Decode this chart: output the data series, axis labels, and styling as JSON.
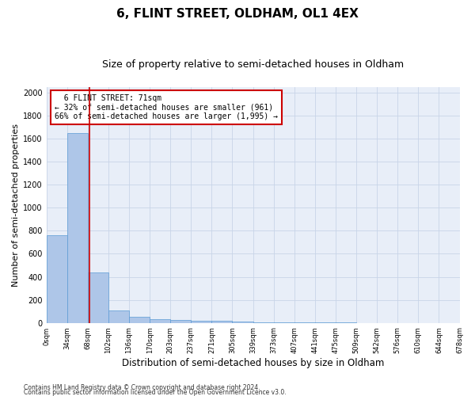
{
  "title1": "6, FLINT STREET, OLDHAM, OL1 4EX",
  "title2": "Size of property relative to semi-detached houses in Oldham",
  "xlabel": "Distribution of semi-detached houses by size in Oldham",
  "ylabel": "Number of semi-detached properties",
  "footnote1": "Contains HM Land Registry data © Crown copyright and database right 2024.",
  "footnote2": "Contains public sector information licensed under the Open Government Licence v3.0.",
  "bar_values": [
    760,
    1650,
    440,
    110,
    50,
    35,
    25,
    20,
    15,
    8,
    5,
    3,
    2,
    1,
    1,
    0,
    0,
    0,
    0
  ],
  "categories": [
    "0sqm",
    "34sqm",
    "68sqm",
    "102sqm",
    "136sqm",
    "170sqm",
    "203sqm",
    "237sqm",
    "271sqm",
    "305sqm",
    "339sqm",
    "373sqm",
    "407sqm",
    "441sqm",
    "475sqm",
    "509sqm",
    "542sqm",
    "576sqm",
    "610sqm",
    "644sqm",
    "678sqm"
  ],
  "bar_color": "#aec6e8",
  "bar_edge_color": "#5b9bd5",
  "property_size": 71,
  "property_line_label": "6 FLINT STREET: 71sqm",
  "pct_smaller": 32,
  "count_smaller": 961,
  "pct_larger": 66,
  "count_larger": 1995,
  "annotation_box_color": "#cc0000",
  "ylim": [
    0,
    2050
  ],
  "yticks": [
    0,
    200,
    400,
    600,
    800,
    1000,
    1200,
    1400,
    1600,
    1800,
    2000
  ],
  "grid_color": "#c8d4e8",
  "bg_color": "#e8eef8",
  "title1_fontsize": 11,
  "title2_fontsize": 9,
  "xlabel_fontsize": 8.5,
  "ylabel_fontsize": 8,
  "footnote_fontsize": 5.5
}
